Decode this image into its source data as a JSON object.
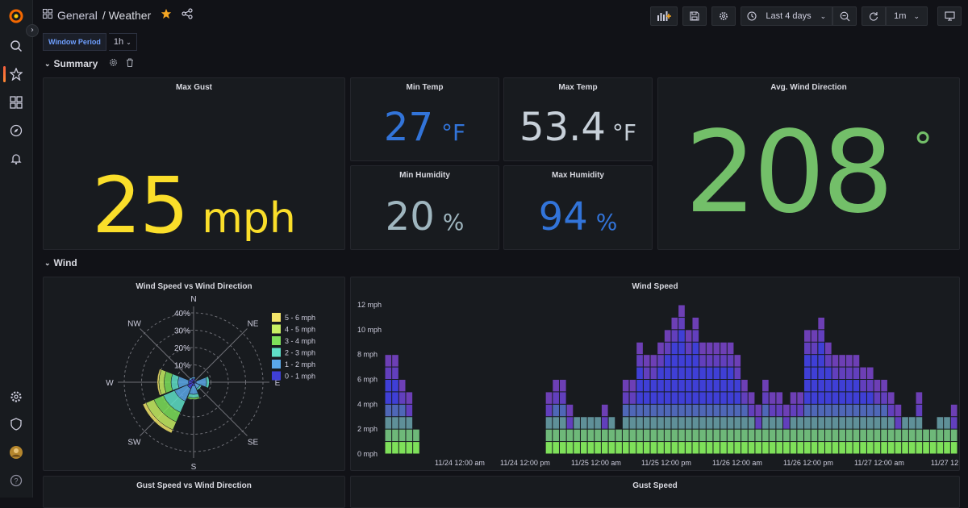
{
  "topbar": {
    "breadcrumb": [
      "General",
      "/ Weather"
    ],
    "time_range": "Last 4 days",
    "refresh_interval": "1m"
  },
  "variables": {
    "window_period_label": "Window Period",
    "window_period_value": "1h"
  },
  "rows": {
    "summary": "Summary",
    "wind": "Wind"
  },
  "panels": {
    "max_gust": {
      "title": "Max Gust",
      "value": "25",
      "unit": "mph",
      "color": "#fade2a"
    },
    "min_temp": {
      "title": "Min Temp",
      "value": "27",
      "unit": "°F",
      "color": "#3274d9"
    },
    "max_temp": {
      "title": "Max Temp",
      "value": "53.4",
      "unit": "°F",
      "color": "#c7d0d9"
    },
    "avg_wind_direction": {
      "title": "Avg. Wind Direction",
      "value": "208",
      "unit": "°",
      "color": "#73bf69"
    },
    "min_humidity": {
      "title": "Min Humidity",
      "value": "20",
      "unit": "%",
      "color": "#9fb6bf"
    },
    "max_humidity": {
      "title": "Max Humidity",
      "value": "94",
      "unit": "%",
      "color": "#3274d9"
    },
    "wind_rose": {
      "title": "Wind Speed vs Wind Direction"
    },
    "wind_speed": {
      "title": "Wind Speed"
    },
    "gust_rose": {
      "title": "Gust Speed vs Wind Direction"
    },
    "gust_speed": {
      "title": "Gust Speed"
    }
  },
  "chart_data": [
    {
      "type": "polar-area",
      "title": "Wind Speed vs Wind Direction",
      "directions": [
        "N",
        "NE",
        "E",
        "SE",
        "S",
        "SW",
        "W",
        "NW"
      ],
      "radial_ticks": [
        "10%",
        "20%",
        "30%",
        "40%"
      ],
      "radial_max": 40,
      "series": [
        {
          "name": "0 - 1 mph",
          "color": "#3f3fd6",
          "values": [
            2,
            1,
            1.5,
            1,
            2,
            4,
            3,
            2
          ]
        },
        {
          "name": "1 - 2 mph",
          "color": "#5aa7e8",
          "values": [
            1,
            0.5,
            6,
            3,
            5,
            8,
            6,
            1
          ]
        },
        {
          "name": "2 - 3 mph",
          "color": "#5fe0c8",
          "values": [
            0,
            0,
            1.5,
            1,
            2,
            7,
            4,
            0
          ]
        },
        {
          "name": "3 - 4 mph",
          "color": "#7ee05a",
          "values": [
            0,
            0,
            0,
            0,
            1,
            6,
            4,
            0
          ]
        },
        {
          "name": "4 - 5 mph",
          "color": "#c8ef63",
          "values": [
            0,
            0,
            0,
            0,
            0,
            5,
            3,
            0
          ]
        },
        {
          "name": "5 - 6 mph",
          "color": "#f3e56a",
          "values": [
            0,
            0,
            0,
            0,
            0,
            2,
            1,
            0
          ]
        }
      ]
    },
    {
      "type": "heatmap",
      "title": "Wind Speed",
      "y_ticks": [
        "0 mph",
        "2 mph",
        "4 mph",
        "6 mph",
        "8 mph",
        "10 mph",
        "12 mph"
      ],
      "y_max": 12,
      "x_ticks": [
        "11/24 12:00 am",
        "11/24 12:00 pm",
        "11/25 12:00 am",
        "11/25 12:00 pm",
        "11/26 12:00 am",
        "11/26 12:00 pm",
        "11/27 12:00 am",
        "11/27 12"
      ],
      "color_low": "#3f3fd6",
      "color_high": "#7ee05a",
      "color_top": "#6d3fb5",
      "column_heights": [
        8,
        8,
        6,
        5,
        2,
        0,
        0,
        0,
        0,
        0,
        0,
        0,
        0,
        0,
        0,
        0,
        0,
        0,
        0,
        0,
        0,
        0,
        0,
        5,
        6,
        6,
        4,
        3,
        3,
        3,
        3,
        4,
        3,
        2,
        6,
        6,
        9,
        8,
        8,
        9,
        10,
        11,
        12,
        10,
        11,
        9,
        9,
        9,
        9,
        9,
        8,
        6,
        5,
        4,
        6,
        5,
        5,
        4,
        5,
        5,
        10,
        10,
        11,
        9,
        8,
        8,
        8,
        8,
        7,
        7,
        6,
        6,
        5,
        4,
        3,
        3,
        5,
        2,
        2,
        3,
        3,
        4
      ]
    }
  ]
}
